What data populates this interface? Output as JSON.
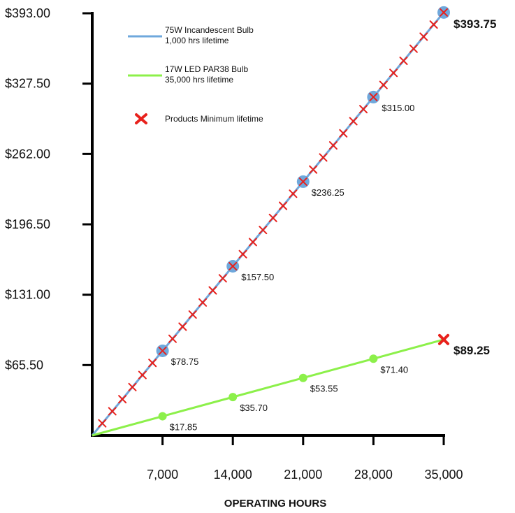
{
  "chart_data": {
    "type": "line",
    "xlabel": "OPERATING HOURS",
    "ylabel": "",
    "xlim": [
      0,
      35000
    ],
    "ylim": [
      0,
      393
    ],
    "x_ticks": [
      7000,
      14000,
      21000,
      28000,
      35000
    ],
    "x_tick_labels": [
      "7,000",
      "14,000",
      "21,000",
      "28,000",
      "35,000"
    ],
    "y_ticks": [
      65.5,
      131,
      196.5,
      262,
      327.5,
      393
    ],
    "y_tick_labels": [
      "$65.50",
      "$131.00",
      "$196.50",
      "$262.00",
      "$327.50",
      "$393.00"
    ],
    "grid": false,
    "legend_position": "top-left",
    "series": [
      {
        "name": "75W Incandescent Bulb\n1,000 hrs lifetime",
        "color": "#6fa8dc",
        "x": [
          0,
          7000,
          14000,
          21000,
          28000,
          35000
        ],
        "y": [
          0,
          78.75,
          157.5,
          236.25,
          315.0,
          393.75
        ],
        "labels": [
          "",
          "$78.75",
          "$157.50",
          "$236.25",
          "$315.00",
          "$393.75"
        ]
      },
      {
        "name": "17W LED  PAR38 Bulb\n35,000 hrs lifetime",
        "color": "#8cf04a",
        "x": [
          0,
          7000,
          14000,
          21000,
          28000,
          35000
        ],
        "y": [
          0,
          17.85,
          35.7,
          53.55,
          71.4,
          89.25
        ],
        "labels": [
          "",
          "$17.85",
          "$35.70",
          "$53.55",
          "$71.40",
          "$89.25"
        ]
      }
    ],
    "lifetime_markers": {
      "name": "Products Minimum lifetime",
      "color": "#e8211c",
      "incandescent_interval_hours": 1000,
      "led_x": [
        35000
      ]
    }
  }
}
